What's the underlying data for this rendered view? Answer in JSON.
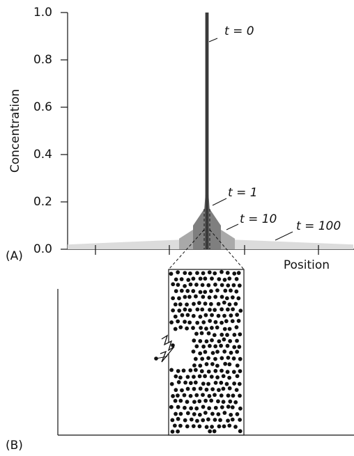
{
  "chart_data": {
    "type": "area",
    "ylabel": "Concentration",
    "xlabel": "Position",
    "panel_label": "(A)",
    "ylim": [
      0,
      1.0
    ],
    "yticks": [
      {
        "value": 0,
        "label": "0.0"
      },
      0.2,
      0.4,
      0.6,
      0.8,
      {
        "value": 1,
        "label": "1.0"
      }
    ],
    "xlim": [
      -1,
      1.05
    ],
    "xticks": [
      -0.8,
      -0.27,
      0.27,
      0.8
    ],
    "series": [
      {
        "name": "t = 100",
        "color": "#dcdcdc",
        "x": [
          -1,
          0,
          1.05
        ],
        "values": [
          0.02,
          0.045,
          0.02
        ]
      },
      {
        "name": "t = 10",
        "color": "#a9a9a9",
        "x": [
          -0.2,
          -0.08,
          0,
          0.08,
          0.2
        ],
        "values": [
          0.045,
          0.09,
          0.1,
          0.09,
          0.045
        ]
      },
      {
        "name": "t = 1",
        "color": "#7f7f7f",
        "x": [
          -0.1,
          -0.02,
          0,
          0.02,
          0.1
        ],
        "values": [
          0.1,
          0.17,
          0.3,
          0.17,
          0.1
        ]
      },
      {
        "name": "t = 0",
        "color": "#3a3a3a",
        "x": [
          -0.012,
          -0.012,
          0.012,
          0.012
        ],
        "values": [
          0,
          1.0,
          1.0,
          0
        ]
      }
    ]
  },
  "panel_b": {
    "label": "(B)"
  }
}
